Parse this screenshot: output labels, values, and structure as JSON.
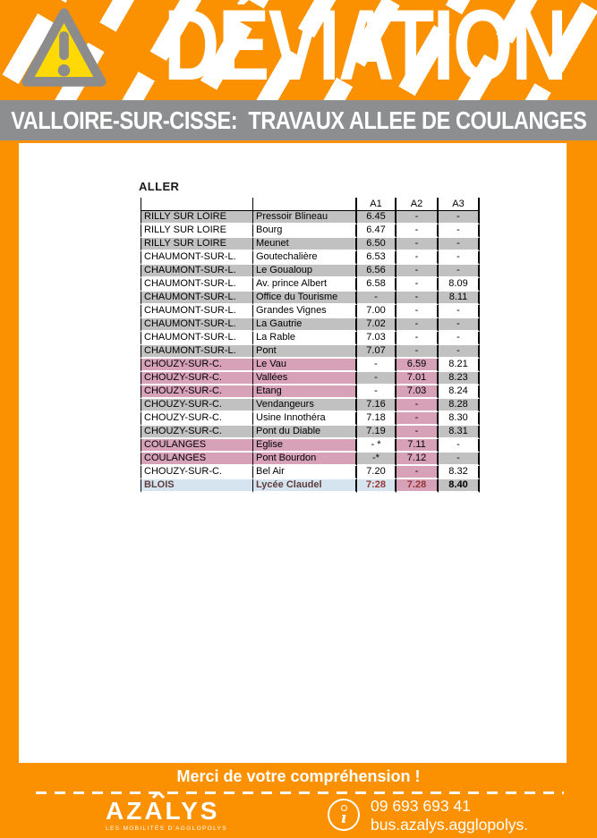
{
  "banner": {
    "title": "DÉVIATION",
    "warning_icon": "warning-triangle-icon"
  },
  "subtitle": "VALLOIRE-SUR-CISSE:  TRAVAUX ALLEE DE COULANGES",
  "table": {
    "direction_label": "ALLER",
    "columns": [
      "A1",
      "A2",
      "A3"
    ],
    "rows": [
      {
        "commune": "RILLY SUR LOIRE",
        "stop": "Pressoir Blineau",
        "a1": "6.45",
        "a2": "-",
        "a3": "-",
        "bg": [
          "gray",
          "gray",
          "gray",
          "gray"
        ]
      },
      {
        "commune": "RILLY SUR LOIRE",
        "stop": "Bourg",
        "a1": "6.47",
        "a2": "-",
        "a3": "-",
        "bg": [
          "white",
          "white",
          "white",
          "white"
        ]
      },
      {
        "commune": "RILLY SUR LOIRE",
        "stop": "Meunet",
        "a1": "6.50",
        "a2": "-",
        "a3": "-",
        "bg": [
          "gray",
          "gray",
          "gray",
          "gray"
        ]
      },
      {
        "commune": "CHAUMONT-SUR-L.",
        "stop": "Goutechalière",
        "a1": "6.53",
        "a2": "-",
        "a3": "-",
        "bg": [
          "white",
          "white",
          "white",
          "white"
        ]
      },
      {
        "commune": "CHAUMONT-SUR-L.",
        "stop": "Le Goualoup",
        "a1": "6.56",
        "a2": "-",
        "a3": "-",
        "bg": [
          "gray",
          "gray",
          "gray",
          "gray"
        ]
      },
      {
        "commune": "CHAUMONT-SUR-L.",
        "stop": "Av. prince Albert",
        "a1": "6.58",
        "a2": "-",
        "a3": "8.09",
        "bg": [
          "white",
          "white",
          "white",
          "white"
        ]
      },
      {
        "commune": "CHAUMONT-SUR-L.",
        "stop": "Office du Tourisme",
        "a1": "-",
        "a2": "-",
        "a3": "8.11",
        "bg": [
          "gray",
          "gray",
          "gray",
          "gray"
        ]
      },
      {
        "commune": "CHAUMONT-SUR-L.",
        "stop": "Grandes Vignes",
        "a1": "7.00",
        "a2": "-",
        "a3": "-",
        "bg": [
          "white",
          "white",
          "white",
          "white"
        ]
      },
      {
        "commune": "CHAUMONT-SUR-L.",
        "stop": "La Gautrie",
        "a1": "7.02",
        "a2": "-",
        "a3": "-",
        "bg": [
          "gray",
          "gray",
          "gray",
          "gray"
        ]
      },
      {
        "commune": "CHAUMONT-SUR-L.",
        "stop": "La Rable",
        "a1": "7.03",
        "a2": "-",
        "a3": "-",
        "bg": [
          "white",
          "white",
          "white",
          "white"
        ]
      },
      {
        "commune": "CHAUMONT-SUR-L.",
        "stop": "Pont",
        "a1": "7.07",
        "a2": "-",
        "a3": "-",
        "bg": [
          "gray",
          "gray",
          "gray",
          "gray"
        ]
      },
      {
        "commune": "CHOUZY-SUR-C.",
        "stop": "Le Vau",
        "a1": "-",
        "a2": "6.59",
        "a3": "8.21",
        "bg": [
          "pink",
          "white",
          "pink",
          "white"
        ]
      },
      {
        "commune": "CHOUZY-SUR-C.",
        "stop": "Vallées",
        "a1": "-",
        "a2": "7.01",
        "a3": "8.23",
        "bg": [
          "pink",
          "gray",
          "pink",
          "gray"
        ]
      },
      {
        "commune": "CHOUZY-SUR-C.",
        "stop": "Etang",
        "a1": "-",
        "a2": "7.03",
        "a3": "8.24",
        "bg": [
          "pink",
          "white",
          "pink",
          "white"
        ]
      },
      {
        "commune": "CHOUZY-SUR-C.",
        "stop": "Vendangeurs",
        "a1": "7.16",
        "a2": "-",
        "a3": "8.28",
        "bg": [
          "gray",
          "gray",
          "pink",
          "gray"
        ]
      },
      {
        "commune": "CHOUZY-SUR-C.",
        "stop": "Usine Innothéra",
        "a1": "7.18",
        "a2": "-",
        "a3": "8.30",
        "bg": [
          "white",
          "white",
          "pink",
          "white"
        ]
      },
      {
        "commune": "CHOUZY-SUR-C.",
        "stop": "Pont du Diable",
        "a1": "7.19",
        "a2": "-",
        "a3": "8.31",
        "bg": [
          "gray",
          "gray",
          "pink",
          "gray"
        ]
      },
      {
        "commune": "COULANGES",
        "stop": "Eglise",
        "a1": "- *",
        "a2": "7.11",
        "a3": "-",
        "bg": [
          "pink",
          "white",
          "pink",
          "white"
        ]
      },
      {
        "commune": "COULANGES",
        "stop": "Pont Bourdon",
        "a1": "-*",
        "a2": "7.12",
        "a3": "-",
        "bg": [
          "pink",
          "gray",
          "pink",
          "gray"
        ]
      },
      {
        "commune": "CHOUZY-SUR-C.",
        "stop": "Bel Air",
        "a1": "7.20",
        "a2": "-",
        "a3": "8.32",
        "bg": [
          "white",
          "white",
          "pink",
          "white"
        ]
      },
      {
        "commune": "BLOIS",
        "stop": "Lycée Claudel",
        "a1": "7:28",
        "a2": "7.28",
        "a3": "8.40",
        "bg": [
          "blue",
          "blue",
          "pink",
          "gray"
        ],
        "bold": true,
        "text_colors": [
          "#5d3d3d",
          "#5d3d3d",
          "#953735",
          "#953735",
          "#000000"
        ]
      }
    ]
  },
  "footer": {
    "thanks": "Merci de votre compréhension !",
    "brand": "AZALYS",
    "brand_tagline": "LES MOBILITÉS D'AGGLOPOLYS",
    "phone": "09 693 693 41",
    "website": "bus.azalys.agglopolys.",
    "info_icon": "info-icon"
  },
  "colors": {
    "orange": "#FB9100",
    "bar_gray": "#8C8E90",
    "row_gray": "#C1C1C1",
    "row_pink": "#D7A1B7",
    "row_blue": "#D6E4EF",
    "triangle_yellow": "#FFD903",
    "triangle_gray": "#8C8C8C",
    "maroon": "#953735"
  }
}
